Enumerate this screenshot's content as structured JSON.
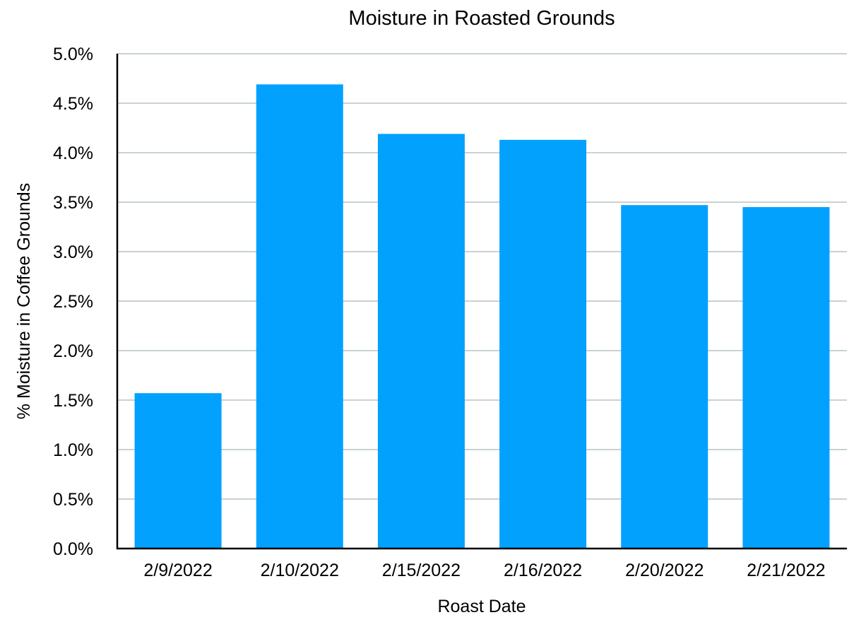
{
  "chart_data": {
    "type": "bar",
    "title": "Moisture in Roasted Grounds",
    "xlabel": "Roast Date",
    "ylabel": "% Moisture in Coffee Grounds",
    "categories": [
      "2/9/2022",
      "2/10/2022",
      "2/15/2022",
      "2/16/2022",
      "2/20/2022",
      "2/21/2022"
    ],
    "values": [
      1.57,
      4.69,
      4.19,
      4.13,
      3.47,
      3.45
    ],
    "ylim": [
      0,
      5
    ],
    "yticks": [
      "0.0%",
      "0.5%",
      "1.0%",
      "1.5%",
      "2.0%",
      "2.5%",
      "3.0%",
      "3.5%",
      "4.0%",
      "4.5%",
      "5.0%"
    ],
    "grid": true,
    "legend": "none",
    "bar_color": "#03a1fe",
    "gridline_color": "#a9b8b8"
  }
}
